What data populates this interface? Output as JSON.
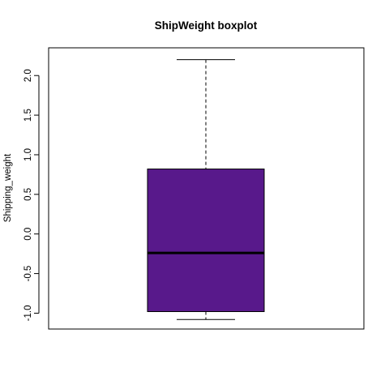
{
  "chart_data": {
    "type": "box",
    "title": "ShipWeight boxplot",
    "xlabel": "",
    "ylabel": "Shipping_weight",
    "ylim": [
      -1.2,
      2.35
    ],
    "y_ticks": [
      -1.0,
      -0.5,
      0.0,
      0.5,
      1.0,
      1.5,
      2.0
    ],
    "y_tick_labels": [
      "-1.0",
      "-0.5",
      "0.0",
      "0.5",
      "1.0",
      "1.5",
      "2.0"
    ],
    "series": [
      {
        "min": -1.08,
        "q1": -0.98,
        "median": -0.24,
        "q3": 0.82,
        "max": 2.2
      }
    ],
    "box_color": "#58198B",
    "grid": false,
    "legend": "none"
  }
}
